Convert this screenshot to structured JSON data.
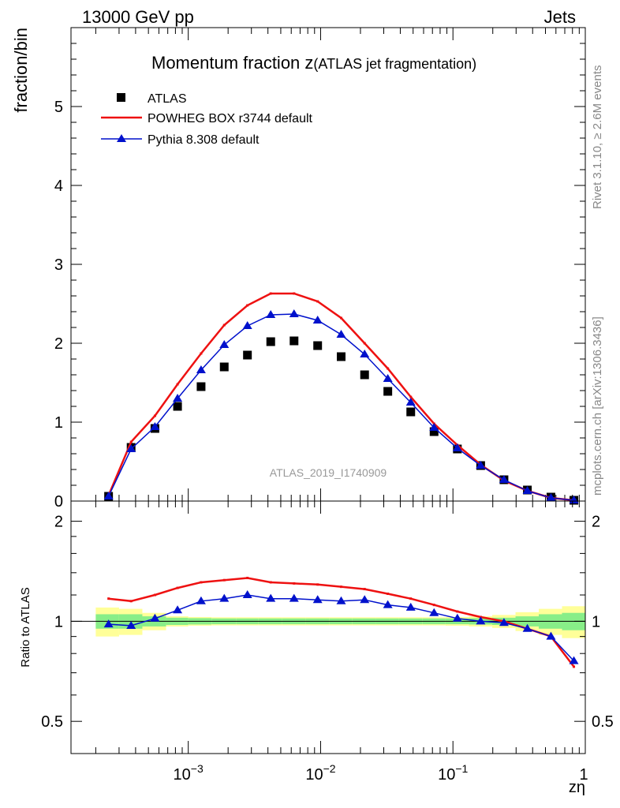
{
  "header": {
    "left": "13000 GeV pp",
    "right": "Jets"
  },
  "side_labels": {
    "rivet": "Rivet 3.1.10, ≥ 2.6M events",
    "mcplots": "mcplots.cern.ch [arXiv:1306.3436]"
  },
  "chart_data": [
    {
      "type": "line",
      "title": "Momentum fraction z",
      "subtitle": "(ATLAS jet fragmentation)",
      "watermark": "ATLAS_2019_I1740909",
      "ylabel": "fraction/bin",
      "xlabel": "zη",
      "x_scale": "log",
      "xlim": [
        0.00013,
        1.0
      ],
      "ylim": [
        0,
        6
      ],
      "yticks": [
        0,
        1,
        2,
        3,
        4,
        5
      ],
      "ytick_labels": [
        "0",
        "1",
        "2",
        "3",
        "4",
        "5"
      ],
      "legend_position": "top-left",
      "x": [
        0.00025,
        0.00037,
        0.00056,
        0.00083,
        0.00125,
        0.00187,
        0.0028,
        0.0042,
        0.0063,
        0.0095,
        0.0143,
        0.0215,
        0.0322,
        0.048,
        0.072,
        0.108,
        0.162,
        0.243,
        0.365,
        0.55,
        0.82
      ],
      "series": [
        {
          "name": "ATLAS",
          "style": "square-markers",
          "color": "#000000",
          "values": [
            0.06,
            0.68,
            0.92,
            1.2,
            1.45,
            1.7,
            1.85,
            2.02,
            2.03,
            1.97,
            1.83,
            1.6,
            1.39,
            1.13,
            0.88,
            0.66,
            0.45,
            0.27,
            0.14,
            0.05,
            0.01
          ]
        },
        {
          "name": "POWHEG BOX r3744 default",
          "style": "line",
          "color": "#ee1111",
          "values": [
            0.07,
            0.75,
            1.08,
            1.48,
            1.87,
            2.23,
            2.48,
            2.63,
            2.63,
            2.53,
            2.32,
            2.0,
            1.68,
            1.32,
            0.98,
            0.71,
            0.46,
            0.26,
            0.13,
            0.04,
            0.01
          ]
        },
        {
          "name": "Pythia 8.308 default",
          "style": "line-triangles",
          "color": "#0011cc",
          "values": [
            0.06,
            0.66,
            0.94,
            1.3,
            1.66,
            1.98,
            2.22,
            2.36,
            2.37,
            2.29,
            2.11,
            1.86,
            1.55,
            1.25,
            0.93,
            0.67,
            0.45,
            0.27,
            0.13,
            0.04,
            0.01
          ]
        }
      ]
    },
    {
      "type": "line",
      "ylabel": "Ratio to ATLAS",
      "xlabel": "zη",
      "x_scale": "log",
      "y_scale": "log",
      "xlim": [
        0.00013,
        1.0
      ],
      "ylim": [
        0.4,
        2.3
      ],
      "xticks": [
        0.001,
        0.01,
        0.1,
        1
      ],
      "xtick_labels": [
        "10",
        "10",
        "10",
        "1"
      ],
      "xtick_exponents": [
        "−3",
        "−2",
        "−1",
        ""
      ],
      "yticks": [
        0.5,
        1,
        2
      ],
      "ytick_labels": [
        "0.5",
        "1",
        "2"
      ],
      "x": [
        0.00025,
        0.00037,
        0.00056,
        0.00083,
        0.00125,
        0.00187,
        0.0028,
        0.0042,
        0.0063,
        0.0095,
        0.0143,
        0.0215,
        0.0322,
        0.048,
        0.072,
        0.108,
        0.162,
        0.243,
        0.365,
        0.55,
        0.82
      ],
      "band_edges": [
        0.0002,
        0.0003,
        0.00045,
        0.00068,
        0.001,
        0.0015,
        0.0023,
        0.0034,
        0.0051,
        0.0077,
        0.0116,
        0.0174,
        0.026,
        0.039,
        0.059,
        0.088,
        0.132,
        0.198,
        0.297,
        0.445,
        0.667,
        1.0
      ],
      "band_inner": [
        0.05,
        0.05,
        0.035,
        0.025,
        0.022,
        0.02,
        0.02,
        0.02,
        0.02,
        0.02,
        0.02,
        0.02,
        0.02,
        0.02,
        0.02,
        0.02,
        0.022,
        0.025,
        0.035,
        0.05,
        0.06
      ],
      "band_outer": [
        0.1,
        0.09,
        0.06,
        0.035,
        0.03,
        0.028,
        0.028,
        0.028,
        0.028,
        0.028,
        0.028,
        0.028,
        0.028,
        0.028,
        0.028,
        0.03,
        0.035,
        0.045,
        0.065,
        0.09,
        0.11
      ],
      "band_colors": {
        "inner": "#88ee88",
        "outer": "#ffff99"
      },
      "series": [
        {
          "name": "POWHEG BOX r3744 default",
          "color": "#ee1111",
          "values": [
            1.17,
            1.15,
            1.2,
            1.26,
            1.31,
            1.33,
            1.35,
            1.31,
            1.3,
            1.29,
            1.27,
            1.25,
            1.21,
            1.17,
            1.12,
            1.07,
            1.03,
            1.0,
            0.95,
            0.9,
            0.73
          ]
        },
        {
          "name": "Pythia 8.308 default",
          "color": "#0011cc",
          "values": [
            0.98,
            0.97,
            1.02,
            1.08,
            1.15,
            1.17,
            1.2,
            1.17,
            1.17,
            1.16,
            1.15,
            1.16,
            1.12,
            1.1,
            1.06,
            1.02,
            1.0,
            0.99,
            0.95,
            0.9,
            0.76
          ]
        }
      ]
    }
  ]
}
